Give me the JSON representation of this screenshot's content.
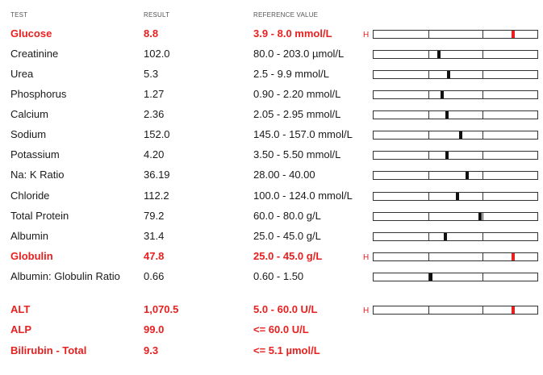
{
  "headers": {
    "test": "TEST",
    "result": "RESULT",
    "reference": "REFERENCE VALUE"
  },
  "rows": [
    {
      "test": "Glucose",
      "result": "8.8",
      "reference": "3.9 - 8.0 mmol/L",
      "flag": "H",
      "high": true,
      "level": 0.85
    },
    {
      "test": "Creatinine",
      "result": "102.0",
      "reference": "80.0 - 203.0 µmol/L",
      "flag": "",
      "high": false,
      "level": 0.4
    },
    {
      "test": "Urea",
      "result": "5.3",
      "reference": "2.5 - 9.9 mmol/L",
      "flag": "",
      "high": false,
      "level": 0.46
    },
    {
      "test": "Phosphorus",
      "result": "1.27",
      "reference": "0.90 - 2.20 mmol/L",
      "flag": "",
      "high": false,
      "level": 0.42
    },
    {
      "test": "Calcium",
      "result": "2.36",
      "reference": "2.05 - 2.95 mmol/L",
      "flag": "",
      "high": false,
      "level": 0.45
    },
    {
      "test": "Sodium",
      "result": "152.0",
      "reference": "145.0 - 157.0 mmol/L",
      "flag": "",
      "high": false,
      "level": 0.53
    },
    {
      "test": "Potassium",
      "result": "4.20",
      "reference": "3.50 - 5.50 mmol/L",
      "flag": "",
      "high": false,
      "level": 0.45
    },
    {
      "test": "Na: K Ratio",
      "result": "36.19",
      "reference": "28.00 - 40.00",
      "flag": "",
      "high": false,
      "level": 0.57
    },
    {
      "test": "Chloride",
      "result": "112.2",
      "reference": "100.0 - 124.0 mmol/L",
      "flag": "",
      "high": false,
      "level": 0.51
    },
    {
      "test": "Total Protein",
      "result": "79.2",
      "reference": "60.0 - 80.0 g/L",
      "flag": "",
      "high": false,
      "level": 0.65
    },
    {
      "test": "Albumin",
      "result": "31.4",
      "reference": "25.0 - 45.0 g/L",
      "flag": "",
      "high": false,
      "level": 0.44
    },
    {
      "test": "Globulin",
      "result": "47.8",
      "reference": "25.0 - 45.0 g/L",
      "flag": "H",
      "high": true,
      "level": 0.85
    },
    {
      "test": "Albumin: Globulin Ratio",
      "result": "0.66",
      "reference": "0.60 - 1.50",
      "flag": "",
      "high": false,
      "level": 0.35
    },
    {
      "test": "ALT",
      "result": "1,070.5",
      "reference": "5.0 - 60.0 U/L",
      "flag": "H",
      "high": true,
      "level": 0.85
    },
    {
      "test": "ALP",
      "result": "99.0",
      "reference": "<= 60.0 U/L",
      "flag": "",
      "high": true,
      "level": null
    },
    {
      "test": "Bilirubin - Total",
      "result": "9.3",
      "reference": "<= 5.1 µmol/L",
      "flag": "",
      "high": true,
      "level": null
    }
  ]
}
